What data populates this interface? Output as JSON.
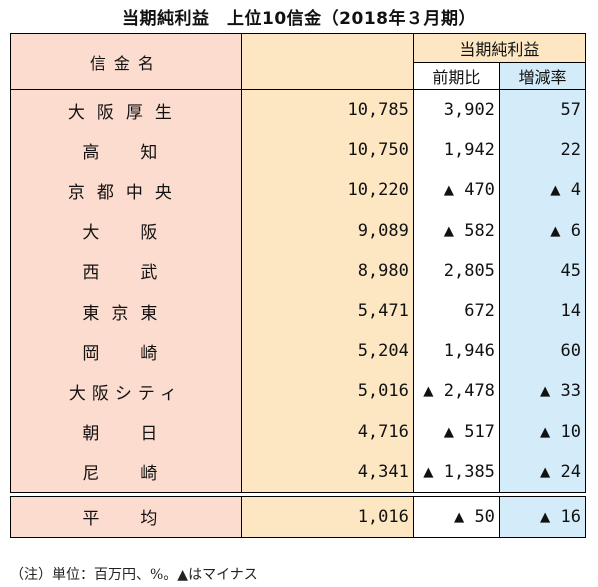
{
  "title": "当期純利益　上位10信金（2018年３月期）",
  "headers": {
    "name": "信金名",
    "net_income": "当期純利益",
    "prev_diff": "前期比",
    "growth_rate": "増減率"
  },
  "rows": [
    {
      "name": "大阪厚生",
      "net": "10,785",
      "prev": "3,902",
      "rate": "57"
    },
    {
      "name": "高　知",
      "net": "10,750",
      "prev": "1,942",
      "rate": "22"
    },
    {
      "name": "京都中央",
      "net": "10,220",
      "prev": "▲ 470",
      "rate": "▲ 4"
    },
    {
      "name": "大　阪",
      "net": "9,089",
      "prev": "▲ 582",
      "rate": "▲ 6"
    },
    {
      "name": "西　武",
      "net": "8,980",
      "prev": "2,805",
      "rate": "45"
    },
    {
      "name": "東京東",
      "net": "5,471",
      "prev": "672",
      "rate": "14"
    },
    {
      "name": "岡　崎",
      "net": "5,204",
      "prev": "1,946",
      "rate": "60"
    },
    {
      "name": "大阪シティ",
      "net": "5,016",
      "prev": "▲ 2,478",
      "rate": "▲ 33"
    },
    {
      "name": "朝　日",
      "net": "4,716",
      "prev": "▲ 517",
      "rate": "▲ 10"
    },
    {
      "name": "尼　崎",
      "net": "4,341",
      "prev": "▲ 1,385",
      "rate": "▲ 24"
    }
  ],
  "average": {
    "name": "平　均",
    "net": "1,016",
    "prev": "▲ 50",
    "rate": "▲ 16"
  },
  "note": "（注）単位：百万円、%。▲はマイナス",
  "colors": {
    "name_bg": "#fbdccf",
    "net_bg": "#fde7c3",
    "rate_bg": "#d4ecf9"
  }
}
